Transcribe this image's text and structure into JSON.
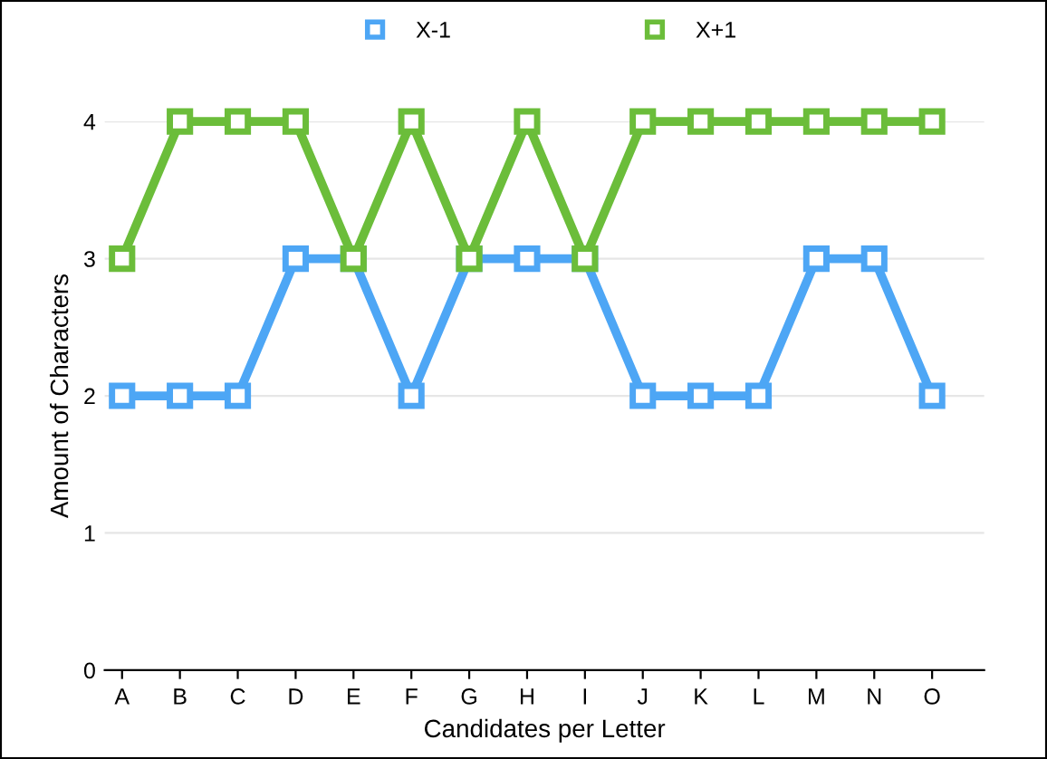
{
  "chart_data": {
    "type": "line",
    "xlabel": "Candidates per Letter",
    "ylabel": "Amount of Characters",
    "categories": [
      "A",
      "B",
      "C",
      "D",
      "E",
      "F",
      "G",
      "H",
      "I",
      "J",
      "K",
      "L",
      "M",
      "N",
      "O"
    ],
    "series": [
      {
        "name": "X-1",
        "color": "#4da6f5",
        "values": [
          2,
          2,
          2,
          3,
          3,
          2,
          3,
          3,
          3,
          2,
          2,
          2,
          3,
          3,
          2
        ]
      },
      {
        "name": "X+1",
        "color": "#6bbd3a",
        "values": [
          3,
          4,
          4,
          4,
          3,
          4,
          3,
          4,
          3,
          4,
          4,
          4,
          4,
          4,
          4
        ]
      }
    ],
    "ylim": [
      0,
      4
    ],
    "yticks": [
      0,
      1,
      2,
      3,
      4
    ],
    "grid": "y",
    "legend": "top",
    "marker": "square",
    "line_style": "solid"
  }
}
